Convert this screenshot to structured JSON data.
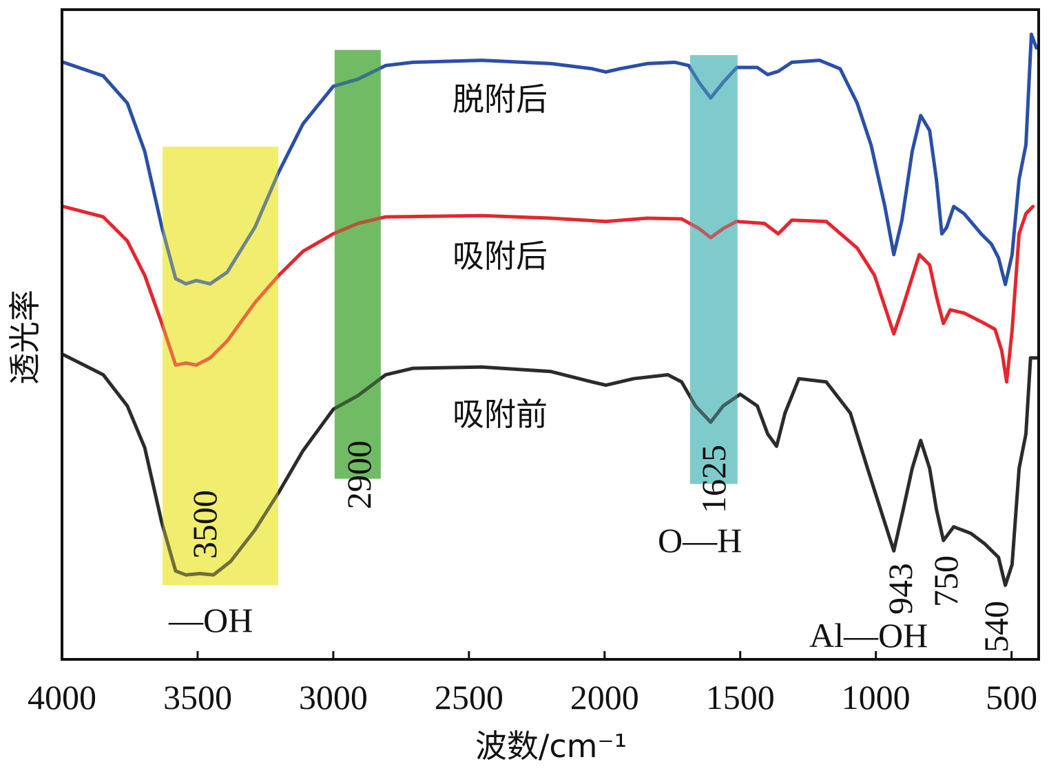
{
  "chart_data": {
    "type": "line",
    "xlabel": "波数/cm⁻¹",
    "ylabel": "透光率",
    "xlim": [
      4000,
      400
    ],
    "x_reversed": true,
    "ylim": [
      0,
      100
    ],
    "y_ticks_shown": false,
    "grid": false,
    "x_ticks": [
      4000,
      3500,
      3000,
      2500,
      2000,
      1500,
      1000,
      500
    ],
    "x_tick_labels": [
      "4000",
      "3500",
      "3000",
      "2500",
      "2000",
      "1500",
      "1000",
      "500"
    ],
    "series": [
      {
        "name": "脱附后",
        "color": "#2a4fa8",
        "points": [
          [
            3995,
            91.9
          ],
          [
            3848,
            89.8
          ],
          [
            3759,
            85.6
          ],
          [
            3695,
            78.2
          ],
          [
            3632,
            66.5
          ],
          [
            3581,
            58.6
          ],
          [
            3543,
            57.8
          ],
          [
            3505,
            58.3
          ],
          [
            3454,
            57.8
          ],
          [
            3391,
            59.6
          ],
          [
            3289,
            66.5
          ],
          [
            3201,
            75.0
          ],
          [
            3112,
            82.4
          ],
          [
            3000,
            88.2
          ],
          [
            2909,
            89.3
          ],
          [
            2807,
            91.4
          ],
          [
            2706,
            91.9
          ],
          [
            2452,
            92.2
          ],
          [
            2198,
            91.7
          ],
          [
            2046,
            90.9
          ],
          [
            1995,
            90.4
          ],
          [
            1944,
            90.9
          ],
          [
            1843,
            91.7
          ],
          [
            1741,
            91.9
          ],
          [
            1690,
            91.4
          ],
          [
            1652,
            88.8
          ],
          [
            1609,
            86.4
          ],
          [
            1563,
            88.8
          ],
          [
            1513,
            91.1
          ],
          [
            1437,
            91.1
          ],
          [
            1399,
            90.0
          ],
          [
            1360,
            90.5
          ],
          [
            1310,
            91.9
          ],
          [
            1208,
            92.2
          ],
          [
            1132,
            90.9
          ],
          [
            1069,
            85.6
          ],
          [
            1018,
            79.2
          ],
          [
            967,
            69.7
          ],
          [
            934,
            62.3
          ],
          [
            904,
            67.6
          ],
          [
            866,
            78.2
          ],
          [
            835,
            83.7
          ],
          [
            802,
            81.4
          ],
          [
            777,
            73.9
          ],
          [
            757,
            65.5
          ],
          [
            739,
            66.5
          ],
          [
            713,
            69.7
          ],
          [
            675,
            68.6
          ],
          [
            612,
            65.5
          ],
          [
            574,
            63.9
          ],
          [
            548,
            61.8
          ],
          [
            523,
            57.7
          ],
          [
            498,
            62.3
          ],
          [
            472,
            73.9
          ],
          [
            447,
            79.2
          ],
          [
            427,
            96.2
          ],
          [
            408,
            94.1
          ]
        ]
      },
      {
        "name": "吸附后",
        "color": "#e5262e",
        "points": [
          [
            3995,
            69.7
          ],
          [
            3848,
            68.1
          ],
          [
            3759,
            64.4
          ],
          [
            3695,
            59.1
          ],
          [
            3632,
            51.7
          ],
          [
            3581,
            45.3
          ],
          [
            3543,
            45.6
          ],
          [
            3505,
            45.3
          ],
          [
            3454,
            46.4
          ],
          [
            3391,
            49.0
          ],
          [
            3289,
            54.9
          ],
          [
            3201,
            59.1
          ],
          [
            3112,
            62.8
          ],
          [
            3000,
            65.5
          ],
          [
            2909,
            67.1
          ],
          [
            2807,
            68.1
          ],
          [
            2452,
            68.3
          ],
          [
            2198,
            67.9
          ],
          [
            1995,
            67.4
          ],
          [
            1843,
            67.9
          ],
          [
            1716,
            67.8
          ],
          [
            1652,
            66.3
          ],
          [
            1609,
            64.9
          ],
          [
            1563,
            66.3
          ],
          [
            1513,
            67.4
          ],
          [
            1411,
            67.1
          ],
          [
            1360,
            65.5
          ],
          [
            1310,
            67.6
          ],
          [
            1183,
            67.4
          ],
          [
            1069,
            63.3
          ],
          [
            1005,
            59.1
          ],
          [
            934,
            50.1
          ],
          [
            904,
            53.8
          ],
          [
            840,
            62.3
          ],
          [
            802,
            60.7
          ],
          [
            777,
            55.9
          ],
          [
            751,
            51.7
          ],
          [
            726,
            53.8
          ],
          [
            675,
            53.3
          ],
          [
            599,
            51.7
          ],
          [
            561,
            50.8
          ],
          [
            536,
            47.5
          ],
          [
            518,
            42.7
          ],
          [
            498,
            50.6
          ],
          [
            472,
            65.5
          ],
          [
            447,
            68.6
          ],
          [
            421,
            69.7
          ]
        ]
      },
      {
        "name": "吸附前",
        "color": "#2b2b2b",
        "points": [
          [
            3995,
            46.9
          ],
          [
            3848,
            43.8
          ],
          [
            3759,
            39.0
          ],
          [
            3695,
            32.6
          ],
          [
            3632,
            21.0
          ],
          [
            3581,
            13.6
          ],
          [
            3543,
            13.0
          ],
          [
            3492,
            13.2
          ],
          [
            3442,
            13.0
          ],
          [
            3378,
            15.1
          ],
          [
            3289,
            19.9
          ],
          [
            3201,
            25.7
          ],
          [
            3112,
            32.1
          ],
          [
            3000,
            38.5
          ],
          [
            2909,
            40.6
          ],
          [
            2807,
            43.8
          ],
          [
            2706,
            44.8
          ],
          [
            2452,
            45.0
          ],
          [
            2198,
            44.3
          ],
          [
            2046,
            42.7
          ],
          [
            1995,
            42.2
          ],
          [
            1893,
            43.2
          ],
          [
            1767,
            43.8
          ],
          [
            1716,
            42.7
          ],
          [
            1665,
            39.0
          ],
          [
            1609,
            36.5
          ],
          [
            1563,
            39.0
          ],
          [
            1500,
            40.8
          ],
          [
            1437,
            39.0
          ],
          [
            1399,
            34.7
          ],
          [
            1366,
            32.8
          ],
          [
            1335,
            37.9
          ],
          [
            1284,
            43.2
          ],
          [
            1183,
            42.7
          ],
          [
            1094,
            37.9
          ],
          [
            1031,
            29.4
          ],
          [
            967,
            21.0
          ],
          [
            934,
            16.7
          ],
          [
            899,
            23.1
          ],
          [
            866,
            29.4
          ],
          [
            835,
            33.7
          ],
          [
            802,
            29.4
          ],
          [
            777,
            23.1
          ],
          [
            751,
            18.3
          ],
          [
            713,
            20.4
          ],
          [
            650,
            19.4
          ],
          [
            599,
            17.8
          ],
          [
            548,
            15.7
          ],
          [
            523,
            11.4
          ],
          [
            498,
            14.6
          ],
          [
            472,
            29.4
          ],
          [
            447,
            34.7
          ],
          [
            430,
            46.4
          ],
          [
            408,
            46.4
          ]
        ]
      }
    ],
    "bands": [
      {
        "color": "#eeea5a",
        "x": [
          3629,
          3203
        ],
        "y": [
          11.4,
          78.9
        ],
        "label": "3500",
        "group_label": "—OH"
      },
      {
        "color": "#5db14e",
        "x": [
          2995,
          2825
        ],
        "y": [
          27.8,
          93.8
        ],
        "label": "2900"
      },
      {
        "color": "#6cc3c3",
        "x": [
          1685,
          1510
        ],
        "y": [
          27.0,
          93.0
        ],
        "label": "1625",
        "group_label": "O—H"
      }
    ],
    "annotations": {
      "al_oh_peaks": [
        "943",
        "750",
        "540"
      ],
      "al_oh_label": "Al—OH"
    }
  }
}
